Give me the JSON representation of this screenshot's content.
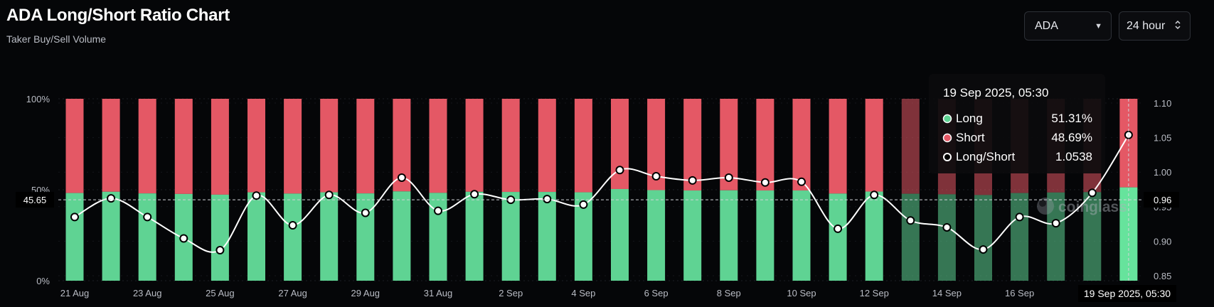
{
  "header": {
    "title": "ADA Long/Short Ratio Chart",
    "subtitle": "Taker Buy/Sell Volume"
  },
  "controls": {
    "asset_select": {
      "value": "ADA",
      "icon": "caret-down-icon"
    },
    "period_select": {
      "value": "24 hour",
      "icon": "up-down-chevron-icon"
    }
  },
  "watermark": {
    "text": "coinglass",
    "icon": "coinglass-logo-icon"
  },
  "tooltip": {
    "title": "19 Sep 2025, 05:30",
    "rows": [
      {
        "label": "Long",
        "value": "51.31%",
        "color": "#5fd393"
      },
      {
        "label": "Short",
        "value": "48.69%",
        "color": "#e45865"
      },
      {
        "label": "Long/Short",
        "value": "1.0538",
        "color": "#ffffff"
      }
    ]
  },
  "crosshair": {
    "y_value_left": "45.65",
    "y_value_right": "0.96",
    "x_value": "19 Sep 2025, 05:30"
  },
  "chart_data": {
    "type": "bar",
    "title": "ADA Long/Short Ratio Chart",
    "subtitle": "Taker Buy/Sell Volume",
    "colors": {
      "long": "#5fd393",
      "short": "#e45865",
      "ratio_line": "#ffffff"
    },
    "x": [
      "21 Aug",
      "22 Aug",
      "23 Aug",
      "24 Aug",
      "25 Aug",
      "26 Aug",
      "27 Aug",
      "28 Aug",
      "29 Aug",
      "30 Aug",
      "31 Aug",
      "1 Sep",
      "2 Sep",
      "3 Sep",
      "4 Sep",
      "5 Sep",
      "6 Sep",
      "7 Sep",
      "8 Sep",
      "9 Sep",
      "10 Sep",
      "11 Sep",
      "12 Sep",
      "13 Sep",
      "14 Sep",
      "15 Sep",
      "16 Sep",
      "17 Sep",
      "18 Sep",
      "19 Sep"
    ],
    "x_tick_labels": [
      "21 Aug",
      "23 Aug",
      "25 Aug",
      "27 Aug",
      "29 Aug",
      "31 Aug",
      "2 Sep",
      "4 Sep",
      "6 Sep",
      "8 Sep",
      "10 Sep",
      "12 Sep",
      "14 Sep",
      "16 Sep"
    ],
    "series": [
      {
        "name": "Long",
        "axis": "left",
        "unit": "%",
        "values": [
          48.2,
          48.9,
          48.0,
          47.7,
          47.3,
          48.6,
          47.9,
          48.6,
          48.0,
          49.1,
          48.3,
          48.9,
          48.8,
          48.8,
          48.6,
          50.4,
          49.8,
          49.6,
          49.7,
          49.6,
          49.6,
          47.9,
          49.0,
          47.8,
          47.5,
          47.1,
          48.2,
          48.5,
          48.7,
          51.31
        ]
      },
      {
        "name": "Short",
        "axis": "left",
        "unit": "%",
        "values": [
          51.8,
          51.1,
          52.0,
          52.3,
          52.7,
          51.4,
          52.1,
          51.4,
          52.0,
          50.9,
          51.7,
          51.1,
          51.2,
          51.2,
          51.4,
          49.6,
          50.2,
          50.4,
          50.3,
          50.4,
          50.4,
          52.1,
          51.0,
          52.2,
          52.5,
          52.9,
          51.8,
          51.5,
          51.3,
          48.69
        ]
      },
      {
        "name": "Long/Short",
        "axis": "right",
        "type": "line",
        "values": [
          0.935,
          0.962,
          0.935,
          0.904,
          0.887,
          0.966,
          0.923,
          0.967,
          0.941,
          0.992,
          0.944,
          0.968,
          0.96,
          0.961,
          0.953,
          1.003,
          0.994,
          0.988,
          0.992,
          0.985,
          0.986,
          0.918,
          0.967,
          0.93,
          0.92,
          0.888,
          0.935,
          0.926,
          0.97,
          1.0538
        ]
      }
    ],
    "y_left": {
      "ticks": [
        "0%",
        "50%",
        "100%"
      ],
      "range": [
        0,
        100
      ]
    },
    "y_right": {
      "ticks": [
        "0.85",
        "0.90",
        "0.95",
        "1.00",
        "1.05",
        "1.10"
      ],
      "range": [
        0.845,
        1.105
      ]
    },
    "grid": true,
    "legend": "none"
  }
}
